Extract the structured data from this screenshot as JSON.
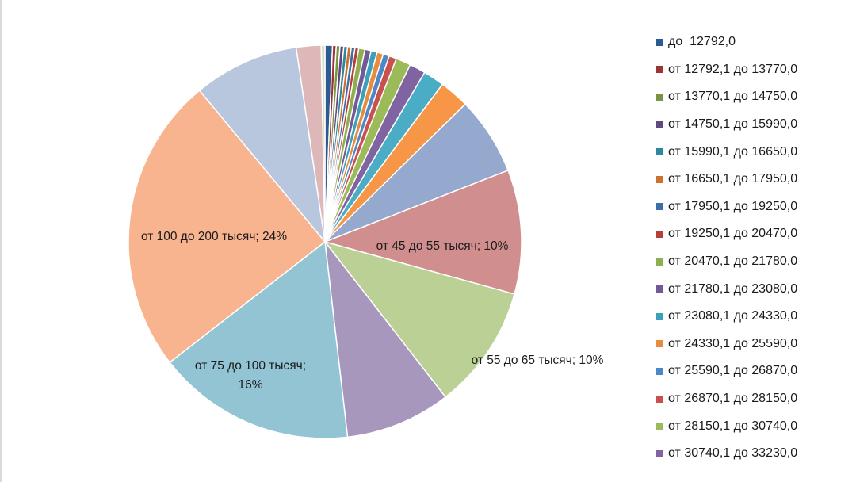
{
  "chart_data": {
    "type": "pie",
    "start_angle_deg": 0,
    "slices": [
      {
        "label": "до  12792,0",
        "value": 0.6,
        "color": "#2e5a92",
        "in_legend": true
      },
      {
        "label": "от 12792,1 до 13770,0",
        "value": 0.3,
        "color": "#9a3533",
        "in_legend": true
      },
      {
        "label": "от 13770,1 до 14750,0",
        "value": 0.3,
        "color": "#799440",
        "in_legend": true
      },
      {
        "label": "от 14750,1 до 15990,0",
        "value": 0.3,
        "color": "#5e4a7c",
        "in_legend": true
      },
      {
        "label": "от 15990,1 до 16650,0",
        "value": 0.3,
        "color": "#30869e",
        "in_legend": true
      },
      {
        "label": "от 16650,1 до 17950,0",
        "value": 0.3,
        "color": "#cb7230",
        "in_legend": true
      },
      {
        "label": "от 17950,1 до 19250,0",
        "value": 0.3,
        "color": "#3d6ea8",
        "in_legend": true
      },
      {
        "label": "от 19250,1 до 20470,0",
        "value": 0.3,
        "color": "#b43f3c",
        "in_legend": true
      },
      {
        "label": "от 20470,1 до 21780,0",
        "value": 0.5,
        "color": "#8fae4e",
        "in_legend": true
      },
      {
        "label": "от 21780,1 до 23080,0",
        "value": 0.5,
        "color": "#71599a",
        "in_legend": true
      },
      {
        "label": "от 23080,1 до 24330,0",
        "value": 0.5,
        "color": "#3aa0bb",
        "in_legend": true
      },
      {
        "label": "от 24330,1 до 25590,0",
        "value": 0.5,
        "color": "#e78c3c",
        "in_legend": true
      },
      {
        "label": "от 25590,1 до 26870,0",
        "value": 0.5,
        "color": "#4f86c6",
        "in_legend": true
      },
      {
        "label": "от 26870,1 до 28150,0",
        "value": 0.6,
        "color": "#c9504d",
        "in_legend": true
      },
      {
        "label": "от 28150,1 до 30740,0",
        "value": 1.2,
        "color": "#9bbb59",
        "in_legend": true
      },
      {
        "label": "от 30740,1 до 33230,0",
        "value": 1.3,
        "color": "#8064a2",
        "in_legend": true
      },
      {
        "label": "",
        "value": 1.7,
        "color": "#4bacc6",
        "in_legend": false
      },
      {
        "label": "",
        "value": 2.4,
        "color": "#f79646",
        "in_legend": false
      },
      {
        "label": "",
        "value": 6.3,
        "color": "#95a9cf",
        "in_legend": false
      },
      {
        "label": "от 45 до 55 тысяч; 10%",
        "value": 10,
        "color": "#d08f8e",
        "in_legend": false
      },
      {
        "label": "от 55 до 65 тысяч; 10%",
        "value": 10,
        "color": "#bbd095",
        "in_legend": false
      },
      {
        "label": "",
        "value": 8.5,
        "color": "#a797bd",
        "in_legend": false
      },
      {
        "label": "от 75 до 100 тысяч; 16%",
        "value": 16,
        "color": "#92c4d4",
        "in_legend": false
      },
      {
        "label": "от 100 до 200 тысяч; 24%",
        "value": 24,
        "color": "#f8b48e",
        "in_legend": false
      },
      {
        "label": "",
        "value": 8.5,
        "color": "#b8c6de",
        "in_legend": false
      },
      {
        "label": "",
        "value": 2.0,
        "color": "#deb8b8",
        "in_legend": false
      },
      {
        "label": "",
        "value": 0.3,
        "color": "#d6e0c4",
        "in_legend": false
      }
    ]
  }
}
